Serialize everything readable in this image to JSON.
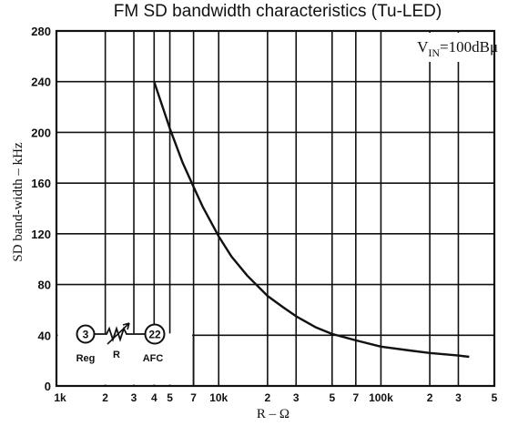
{
  "chart_data": {
    "type": "line",
    "title": "FM SD bandwidth characteristics (Tu-LED)",
    "xlabel": "R – Ω",
    "ylabel": "SD band-width – kHz",
    "xscale": "log",
    "xlim": [
      1000,
      500000
    ],
    "ylim": [
      0,
      280
    ],
    "grid": true,
    "y_ticks": [
      "0",
      "40",
      "80",
      "120",
      "160",
      "200",
      "240",
      "280"
    ],
    "x_ticks": [
      {
        "value": 1000,
        "label": "1k"
      },
      {
        "value": 2000,
        "label": "2"
      },
      {
        "value": 3000,
        "label": "3"
      },
      {
        "value": 4000,
        "label": "4"
      },
      {
        "value": 5000,
        "label": "5"
      },
      {
        "value": 7000,
        "label": "7"
      },
      {
        "value": 10000,
        "label": "10k"
      },
      {
        "value": 20000,
        "label": "2"
      },
      {
        "value": 30000,
        "label": "3"
      },
      {
        "value": 50000,
        "label": "5"
      },
      {
        "value": 70000,
        "label": "7"
      },
      {
        "value": 100000,
        "label": "100k"
      },
      {
        "value": 200000,
        "label": "2"
      },
      {
        "value": 300000,
        "label": "3"
      },
      {
        "value": 500000,
        "label": "5"
      }
    ],
    "annotation": {
      "main": "V",
      "sub": "IN",
      "rest": "=100dBμ"
    },
    "inset": {
      "pin_left": "3",
      "pin_right": "22",
      "label_left": "Reg",
      "label_mid": "R",
      "label_right": "AFC"
    },
    "series": [
      {
        "x": [
          4000,
          5000,
          6000,
          7000,
          8000,
          10000,
          12000,
          15000,
          20000,
          25000,
          30000,
          40000,
          50000,
          70000,
          100000,
          150000,
          200000,
          300000,
          350000
        ],
        "y": [
          240,
          203,
          176,
          157,
          141,
          118,
          102,
          87,
          71,
          62,
          55,
          46,
          41,
          36,
          31,
          28,
          26,
          24,
          23
        ]
      }
    ]
  }
}
